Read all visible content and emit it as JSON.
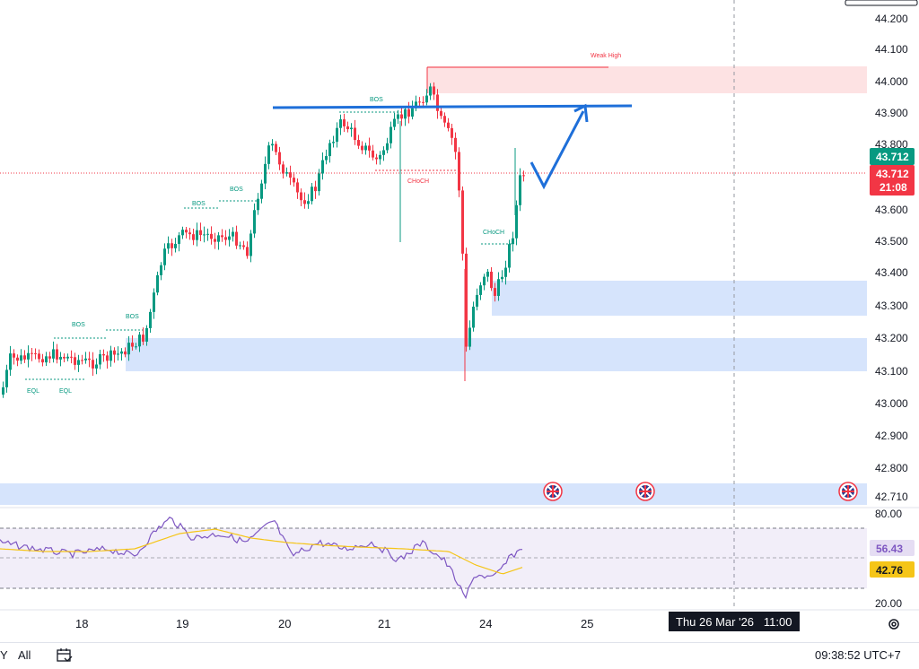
{
  "chart_data": {
    "type": "candlestick",
    "price_axis": {
      "ticks": [
        "44.200",
        "44.100",
        "44.000",
        "43.900",
        "43.800",
        "43.700",
        "43.600",
        "43.500",
        "43.400",
        "43.300",
        "43.200",
        "43.100",
        "43.000",
        "42.900",
        "42.800",
        "42.710"
      ],
      "current_price": "43.712",
      "countdown": "21:08",
      "ylim": [
        42.7,
        44.22
      ]
    },
    "date_axis": {
      "ticks": [
        "18",
        "19",
        "20",
        "21",
        "24",
        "25"
      ],
      "crosshair_label": "Thu 26 Mar '26   11:00"
    },
    "rsi": {
      "ticks": [
        "80.00",
        "20.00"
      ],
      "value": "56.43",
      "ma_value": "42.76"
    },
    "annotations": {
      "bos": [
        "BOS",
        "BOS",
        "BOS",
        "BOS",
        "BOS"
      ],
      "choch": [
        "CHoCH",
        "CHoCH"
      ],
      "eql": [
        "EQL",
        "EQL"
      ],
      "weak_high": "Weak High"
    },
    "colors": {
      "up": "#089981",
      "down": "#f23645",
      "zone_blue": "#d6e4fc",
      "zone_red": "#fde2e3",
      "projection": "#1e6fd9",
      "rsi": "#7e57c2",
      "rsi_ma": "#f5c518"
    }
  },
  "bottom": {
    "range_partial": "Y",
    "range_all": "All",
    "clock": "09:38:52 UTC+7"
  }
}
